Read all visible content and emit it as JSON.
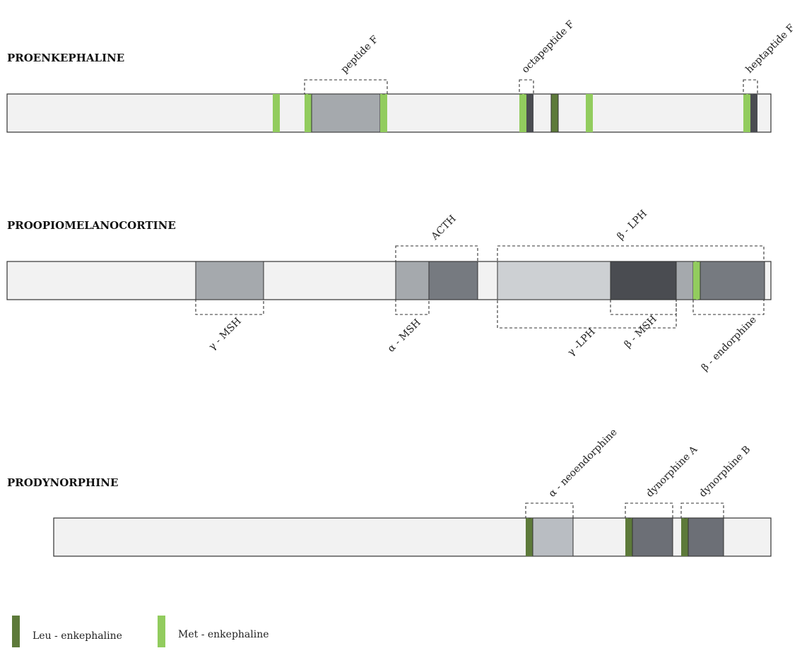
{
  "colors": {
    "leu": "#5d7a3a",
    "met": "#92cc5e",
    "track": "#f2f2f2",
    "gray_light": "#a5a9ad",
    "gray_mid": "#767a80",
    "gray_dark": "#4a4c51",
    "gray_pale": "#cdd0d3",
    "gray_dyn": "#6c6f76",
    "gray_neo": "#b9bdc2"
  },
  "proenkephaline": {
    "title": "PROENKEPHALINE",
    "labels": {
      "peptide_f": "peptide F",
      "octapeptide_f": "octapeptide F",
      "heptaptide_f": "heptaptide F"
    }
  },
  "proopiomelanocortine": {
    "title": "PROOPIOMELANOCORTINE",
    "labels": {
      "acth": "ACTH",
      "beta_lph": "β - LPH",
      "gamma_msh": "γ - MSH",
      "alpha_msh": "α - MSH",
      "gamma_lph": "γ -LPH",
      "beta_msh": "β - MSH",
      "beta_endorphine": "β - endorphine"
    }
  },
  "prodynorphine": {
    "title": "PRODYNORPHINE",
    "labels": {
      "alpha_neo": "α - neoendorphine",
      "dyn_a": "dynorphine A",
      "dyn_b": "dynorphine B"
    }
  },
  "legend": {
    "leu_label": "Leu - enkephaline",
    "met_label": "Met - enkephaline"
  }
}
